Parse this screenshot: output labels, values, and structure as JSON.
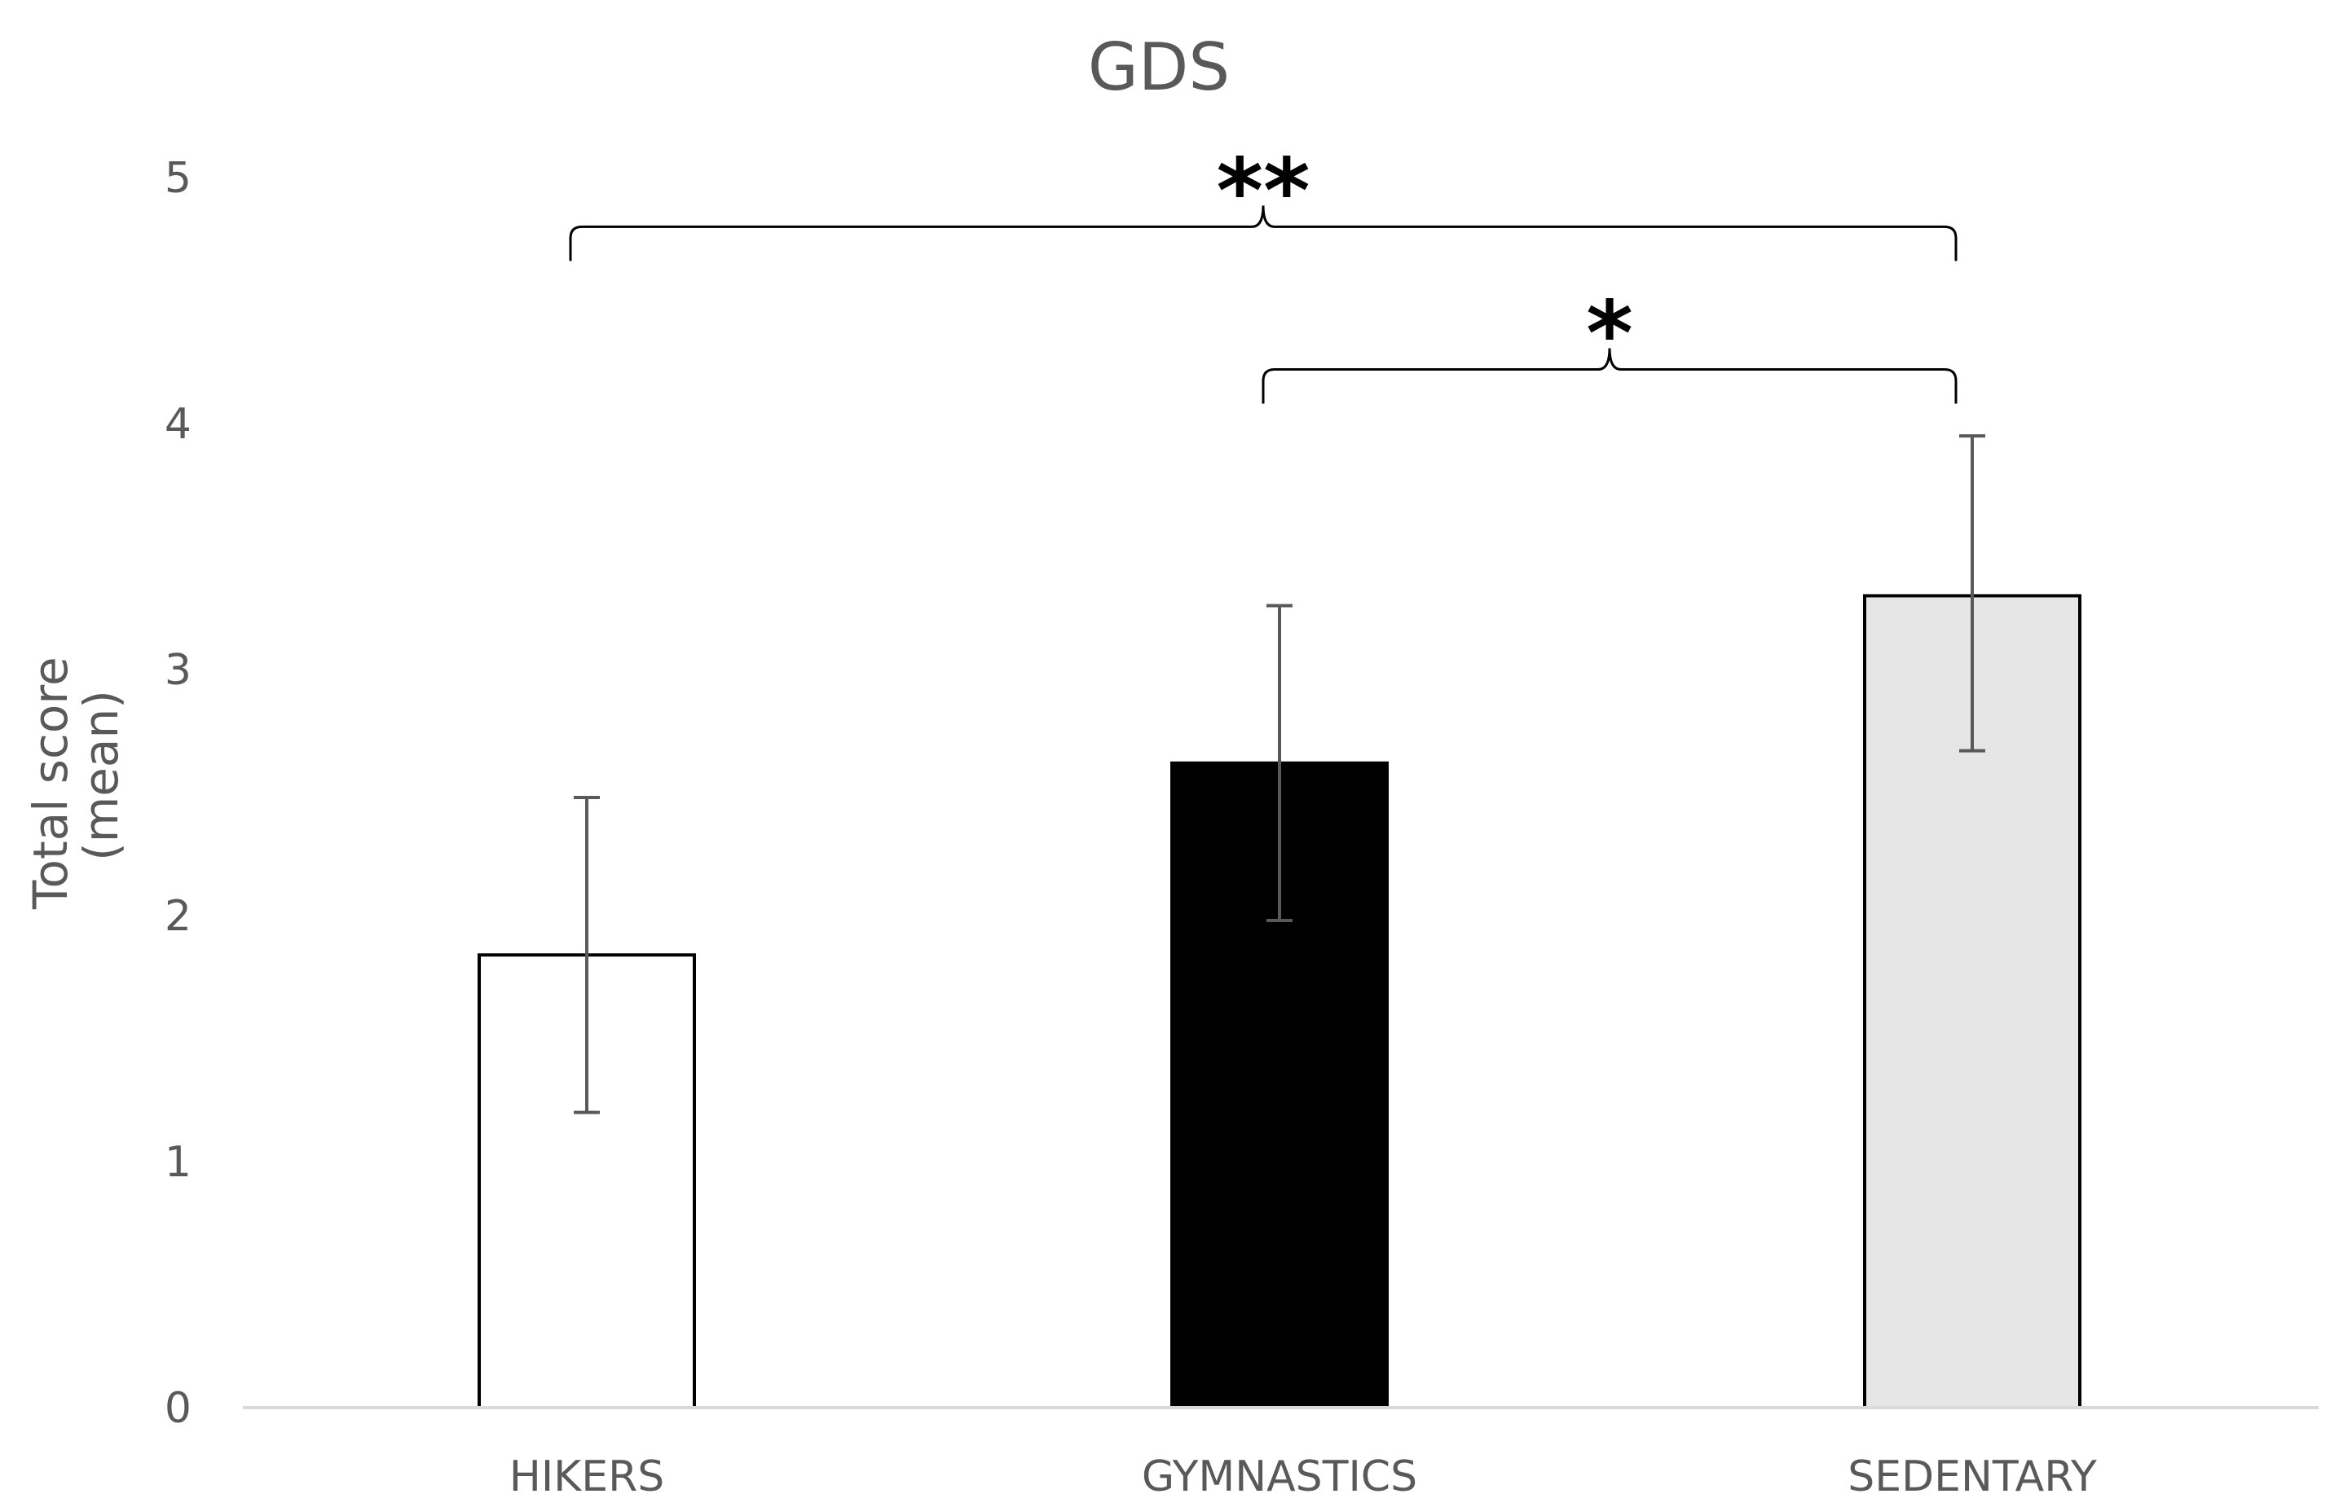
{
  "chart_data": {
    "type": "bar",
    "title": "GDS",
    "ylabel_lines": [
      "Total score",
      "(mean)"
    ],
    "xlabel": "",
    "categories": [
      "HIKERS",
      "GYMNASTICS",
      "SEDENTARY"
    ],
    "values": [
      1.84,
      2.62,
      3.3
    ],
    "error_low": [
      1.2,
      1.98,
      2.67
    ],
    "error_high": [
      2.48,
      3.26,
      3.95
    ],
    "bar_fills": [
      "#ffffff",
      "#000000",
      "#e6e6e6"
    ],
    "bar_stroke": "#000000",
    "ylim": [
      0,
      5
    ],
    "yticks": [
      0,
      1,
      2,
      3,
      4,
      5
    ],
    "grid": false,
    "significance": [
      {
        "from": "HIKERS",
        "to": "SEDENTARY",
        "label": "**",
        "level": 4.8
      },
      {
        "from": "GYMNASTICS",
        "to": "SEDENTARY",
        "label": "*",
        "level": 4.22
      }
    ]
  }
}
